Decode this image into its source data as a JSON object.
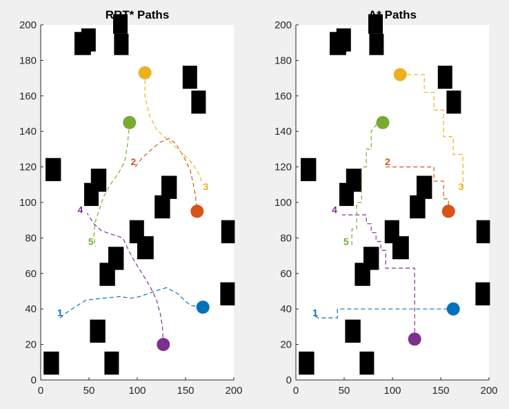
{
  "colors": {
    "background": "#f0f0f0",
    "axes_bg": "#ffffff",
    "axis": "#262626",
    "obstacle": "#000000",
    "path1": "#0072BD",
    "path2": "#D95319",
    "path3": "#EDB120",
    "path4": "#7E2F8E",
    "path5": "#77AC30"
  },
  "chart_data": [
    {
      "type": "line",
      "title": "RRT* Paths",
      "xlim": [
        0,
        200
      ],
      "ylim": [
        0,
        200
      ],
      "x_ticks": [
        "0",
        "50",
        "100",
        "150",
        "200"
      ],
      "y_ticks": [
        "0",
        "20",
        "40",
        "60",
        "80",
        "100",
        "120",
        "140",
        "160",
        "180",
        "200"
      ],
      "grid": false,
      "obstacles": [
        [
          35,
          183,
          17,
          13
        ],
        [
          42,
          185,
          15,
          13
        ],
        [
          75,
          195,
          15,
          11
        ],
        [
          76,
          183,
          15,
          12
        ],
        [
          147,
          164,
          15,
          13
        ],
        [
          156,
          150,
          15,
          13
        ],
        [
          5,
          112,
          16,
          13
        ],
        [
          52,
          106,
          16,
          13
        ],
        [
          45,
          98,
          15,
          13
        ],
        [
          125,
          102,
          16,
          13
        ],
        [
          118,
          91,
          16,
          13
        ],
        [
          92,
          77,
          15,
          13
        ],
        [
          100,
          68,
          17,
          13
        ],
        [
          70,
          62,
          16,
          13
        ],
        [
          61,
          53,
          16,
          13
        ],
        [
          187,
          77,
          14,
          13
        ],
        [
          186,
          42,
          15,
          13
        ],
        [
          51,
          21,
          16,
          13
        ],
        [
          3,
          3,
          16,
          13
        ],
        [
          66,
          3,
          15,
          13
        ]
      ],
      "series": [
        {
          "name": "1",
          "color": "path1",
          "x": [
            20,
            27,
            38,
            47,
            63,
            83,
            93,
            103,
            118,
            130,
            141,
            155,
            168
          ],
          "y": [
            35,
            38,
            42,
            45,
            46,
            47,
            46,
            47,
            50,
            52,
            49,
            42,
            41
          ]
        },
        {
          "name": "2",
          "color": "path2",
          "x": [
            98,
            105,
            115,
            124,
            133,
            140,
            148,
            155,
            160,
            162
          ],
          "y": [
            120,
            125,
            130,
            134,
            136,
            133,
            126,
            118,
            105,
            95
          ]
        },
        {
          "name": "3",
          "color": "path3",
          "x": [
            108,
            108,
            112,
            120,
            130,
            140,
            150,
            157,
            163,
            168
          ],
          "y": [
            173,
            160,
            150,
            141,
            136,
            131,
            126,
            122,
            117,
            110
          ]
        },
        {
          "name": "4",
          "color": "path4",
          "x": [
            127,
            126,
            124,
            120,
            113,
            105,
            97,
            92,
            85,
            74,
            63,
            55,
            48
          ],
          "y": [
            20,
            30,
            37,
            45,
            53,
            60,
            67,
            72,
            80,
            82,
            84,
            88,
            94
          ]
        },
        {
          "name": "5",
          "color": "path5",
          "x": [
            92,
            90,
            87,
            80,
            72,
            65,
            60,
            56,
            55,
            57
          ],
          "y": [
            145,
            133,
            123,
            116,
            110,
            103,
            95,
            88,
            80,
            75
          ]
        }
      ],
      "goals": [
        {
          "x": 168,
          "y": 41,
          "color": "path1"
        },
        {
          "x": 162,
          "y": 95,
          "color": "path2"
        },
        {
          "x": 108,
          "y": 173,
          "color": "path3"
        },
        {
          "x": 127,
          "y": 20,
          "color": "path4"
        },
        {
          "x": 92,
          "y": 145,
          "color": "path5"
        }
      ],
      "labels": [
        {
          "text": "1",
          "x": 20,
          "y": 38,
          "color": "path1"
        },
        {
          "text": "2",
          "x": 96,
          "y": 123,
          "color": "path2"
        },
        {
          "text": "3",
          "x": 171,
          "y": 109,
          "color": "path3"
        },
        {
          "text": "4",
          "x": 41,
          "y": 96,
          "color": "path4"
        },
        {
          "text": "5",
          "x": 52,
          "y": 78,
          "color": "path5"
        }
      ]
    },
    {
      "type": "line",
      "title": "A* Paths",
      "xlim": [
        0,
        200
      ],
      "ylim": [
        0,
        200
      ],
      "x_ticks": [
        "0",
        "50",
        "100",
        "150",
        "200"
      ],
      "y_ticks": [
        "0",
        "20",
        "40",
        "60",
        "80",
        "100",
        "120",
        "140",
        "160",
        "180",
        "200"
      ],
      "grid": false,
      "obstacles": [
        [
          35,
          183,
          17,
          13
        ],
        [
          42,
          185,
          15,
          13
        ],
        [
          75,
          195,
          15,
          11
        ],
        [
          76,
          183,
          15,
          12
        ],
        [
          147,
          164,
          15,
          13
        ],
        [
          156,
          150,
          15,
          13
        ],
        [
          5,
          112,
          16,
          13
        ],
        [
          52,
          106,
          16,
          13
        ],
        [
          45,
          98,
          15,
          13
        ],
        [
          125,
          102,
          16,
          13
        ],
        [
          118,
          91,
          16,
          13
        ],
        [
          92,
          77,
          15,
          13
        ],
        [
          100,
          68,
          17,
          13
        ],
        [
          70,
          62,
          16,
          13
        ],
        [
          61,
          53,
          16,
          13
        ],
        [
          187,
          77,
          14,
          13
        ],
        [
          186,
          42,
          15,
          13
        ],
        [
          51,
          21,
          16,
          13
        ],
        [
          3,
          3,
          16,
          13
        ],
        [
          66,
          3,
          15,
          13
        ]
      ],
      "series": [
        {
          "name": "1",
          "color": "path1",
          "x": [
            20,
            23,
            43,
            43,
            163
          ],
          "y": [
            36,
            35,
            35,
            40,
            40
          ]
        },
        {
          "name": "2",
          "color": "path2",
          "x": [
            93,
            93,
            143,
            143,
            153,
            153,
            158,
            158
          ],
          "y": [
            120,
            120,
            120,
            112,
            112,
            102,
            102,
            95
          ]
        },
        {
          "name": "3",
          "color": "path3",
          "x": [
            108,
            133,
            133,
            143,
            143,
            153,
            153,
            163,
            163,
            173,
            173
          ],
          "y": [
            172,
            172,
            162,
            162,
            152,
            152,
            137,
            137,
            127,
            127,
            107
          ]
        },
        {
          "name": "4",
          "color": "path4",
          "x": [
            123,
            123,
            123,
            93,
            93,
            88,
            88,
            83,
            83,
            78,
            78,
            73,
            73,
            63,
            63,
            48
          ],
          "y": [
            23,
            43,
            63,
            63,
            73,
            73,
            78,
            78,
            83,
            83,
            88,
            88,
            93,
            93,
            93,
            93
          ]
        },
        {
          "name": "5",
          "color": "path5",
          "x": [
            90,
            85,
            78,
            78,
            73,
            73,
            68,
            68,
            63,
            63,
            58,
            58
          ],
          "y": [
            145,
            145,
            140,
            130,
            130,
            120,
            120,
            100,
            100,
            85,
            85,
            75
          ]
        }
      ],
      "goals": [
        {
          "x": 163,
          "y": 40,
          "color": "path1"
        },
        {
          "x": 158,
          "y": 95,
          "color": "path2"
        },
        {
          "x": 108,
          "y": 172,
          "color": "path3"
        },
        {
          "x": 123,
          "y": 23,
          "color": "path4"
        },
        {
          "x": 90,
          "y": 145,
          "color": "path5"
        }
      ],
      "labels": [
        {
          "text": "1",
          "x": 20,
          "y": 38,
          "color": "path1"
        },
        {
          "text": "2",
          "x": 95,
          "y": 123,
          "color": "path2"
        },
        {
          "text": "3",
          "x": 171,
          "y": 109,
          "color": "path3"
        },
        {
          "text": "4",
          "x": 40,
          "y": 96,
          "color": "path4"
        },
        {
          "text": "5",
          "x": 52,
          "y": 78,
          "color": "path5"
        }
      ]
    }
  ]
}
